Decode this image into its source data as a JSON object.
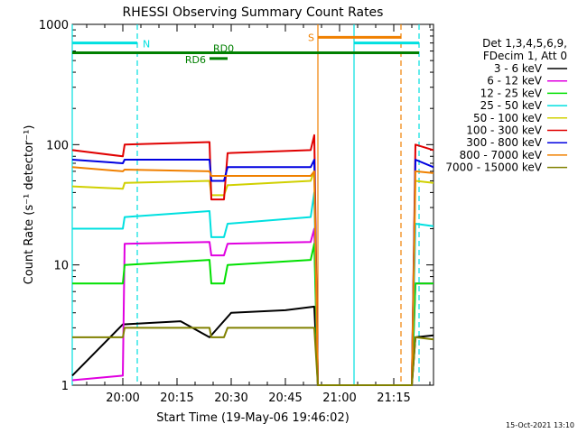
{
  "chart_data": {
    "type": "line",
    "title": "RHESSI Observing Summary Count Rates",
    "xlabel": "Start Time (19-May-06 19:46:02)",
    "ylabel": "Count Rate (s⁻¹ detector⁻¹)",
    "y_scale": "log",
    "ylim": [
      1,
      1000
    ],
    "xlim_minutes": [
      0,
      100
    ],
    "x_ticks": [
      {
        "label": "20:00",
        "t": 14
      },
      {
        "label": "20:15",
        "t": 29
      },
      {
        "label": "20:30",
        "t": 44
      },
      {
        "label": "20:45",
        "t": 59
      },
      {
        "label": "21:00",
        "t": 74
      },
      {
        "label": "21:15",
        "t": 89
      }
    ],
    "y_ticks": [
      {
        "label": "1",
        "v": 1
      },
      {
        "label": "10",
        "v": 10
      },
      {
        "label": "100",
        "v": 100
      },
      {
        "label": "1000",
        "v": 1000
      }
    ],
    "legend_header": [
      "Det 1,3,4,5,6,9,",
      "FDecim 1, Att 0"
    ],
    "legend_position": "right",
    "series": [
      {
        "name": "3 - 6 keV",
        "color": "#000000",
        "points": [
          [
            0,
            1.2
          ],
          [
            14,
            3.2
          ],
          [
            30,
            3.4
          ],
          [
            38,
            2.5
          ],
          [
            44,
            4
          ],
          [
            59,
            4.2
          ],
          [
            67,
            4.5
          ],
          [
            68,
            1
          ],
          [
            94,
            1
          ],
          [
            95,
            2.5
          ],
          [
            100,
            2.6
          ]
        ]
      },
      {
        "name": "6 - 12 keV",
        "color": "#e000e0",
        "points": [
          [
            0,
            1.1
          ],
          [
            14,
            1.2
          ],
          [
            14.5,
            15
          ],
          [
            38,
            15.5
          ],
          [
            38.5,
            12
          ],
          [
            42,
            12
          ],
          [
            43,
            15
          ],
          [
            66,
            15.5
          ],
          [
            67,
            20
          ],
          [
            68,
            1
          ],
          [
            94,
            1
          ],
          [
            95,
            7
          ],
          [
            100,
            7
          ]
        ]
      },
      {
        "name": "12 - 25 keV",
        "color": "#00e000",
        "points": [
          [
            0,
            7
          ],
          [
            14,
            7
          ],
          [
            14.5,
            10
          ],
          [
            38,
            11
          ],
          [
            38.5,
            7
          ],
          [
            42,
            7
          ],
          [
            43,
            10
          ],
          [
            66,
            11
          ],
          [
            67,
            15
          ],
          [
            68,
            1
          ],
          [
            94,
            1
          ],
          [
            95,
            7
          ],
          [
            100,
            7
          ]
        ]
      },
      {
        "name": "25 - 50 keV",
        "color": "#00e0e0",
        "points": [
          [
            0,
            20
          ],
          [
            14,
            20
          ],
          [
            14.5,
            25
          ],
          [
            38,
            28
          ],
          [
            38.5,
            17
          ],
          [
            42,
            17
          ],
          [
            43,
            22
          ],
          [
            66,
            25
          ],
          [
            67,
            40
          ],
          [
            68,
            1
          ],
          [
            94,
            1
          ],
          [
            95,
            22
          ],
          [
            100,
            21
          ]
        ]
      },
      {
        "name": "50 - 100 keV",
        "color": "#d0d000",
        "points": [
          [
            0,
            45
          ],
          [
            14,
            43
          ],
          [
            14.5,
            48
          ],
          [
            38,
            50
          ],
          [
            38.5,
            38
          ],
          [
            42,
            38
          ],
          [
            43,
            46
          ],
          [
            66,
            50
          ],
          [
            67,
            60
          ],
          [
            68,
            1
          ],
          [
            94,
            1
          ],
          [
            95,
            50
          ],
          [
            100,
            48
          ]
        ]
      },
      {
        "name": "100 - 300 keV",
        "color": "#e00000",
        "points": [
          [
            0,
            90
          ],
          [
            14,
            80
          ],
          [
            14.5,
            100
          ],
          [
            38,
            105
          ],
          [
            38.5,
            35
          ],
          [
            42,
            35
          ],
          [
            43,
            85
          ],
          [
            66,
            90
          ],
          [
            67,
            120
          ],
          [
            68,
            1
          ],
          [
            94,
            1
          ],
          [
            95,
            100
          ],
          [
            100,
            90
          ]
        ]
      },
      {
        "name": "300 - 800 keV",
        "color": "#0000e0",
        "points": [
          [
            0,
            75
          ],
          [
            14,
            70
          ],
          [
            14.5,
            75
          ],
          [
            38,
            75
          ],
          [
            38.5,
            50
          ],
          [
            42,
            50
          ],
          [
            43,
            65
          ],
          [
            66,
            65
          ],
          [
            67,
            75
          ],
          [
            68,
            1
          ],
          [
            94,
            1
          ],
          [
            95,
            75
          ],
          [
            100,
            65
          ]
        ]
      },
      {
        "name": "800 - 7000 keV",
        "color": "#f08000",
        "points": [
          [
            0,
            65
          ],
          [
            14,
            60
          ],
          [
            14.5,
            62
          ],
          [
            38,
            60
          ],
          [
            38.5,
            55
          ],
          [
            42,
            55
          ],
          [
            43,
            55
          ],
          [
            66,
            55
          ],
          [
            67,
            60
          ],
          [
            68,
            1
          ],
          [
            94,
            1
          ],
          [
            95,
            60
          ],
          [
            100,
            58
          ]
        ]
      },
      {
        "name": "7000 - 15000 keV",
        "color": "#808000",
        "points": [
          [
            0,
            2.5
          ],
          [
            14,
            2.5
          ],
          [
            14.5,
            3
          ],
          [
            38,
            3
          ],
          [
            38.5,
            2.5
          ],
          [
            42,
            2.5
          ],
          [
            43,
            3
          ],
          [
            66,
            3
          ],
          [
            67,
            3
          ],
          [
            68,
            1
          ],
          [
            94,
            1
          ],
          [
            95,
            2.5
          ],
          [
            100,
            2.4
          ]
        ]
      }
    ],
    "flag_bars": [
      {
        "label": "N",
        "color": "#00e0e0",
        "t0": 0,
        "t1": 18,
        "level": 700
      },
      {
        "label": "",
        "color": "#00e0e0",
        "t0": 78,
        "t1": 96,
        "level": 700
      },
      {
        "label": "S",
        "color": "#f08000",
        "t0": 68,
        "t1": 91,
        "level": 780
      },
      {
        "label": "RD0",
        "color": "#008000",
        "t0": 0,
        "t1": 96,
        "level": 580
      },
      {
        "label": "RD6",
        "color": "#008000",
        "t0": 38,
        "t1": 43,
        "level": 520
      }
    ],
    "vertical_markers": [
      {
        "t": 0,
        "color": "#00e0e0",
        "dashed": false
      },
      {
        "t": 18,
        "color": "#00e0e0",
        "dashed": true
      },
      {
        "t": 68,
        "color": "#f08000",
        "dashed": false
      },
      {
        "t": 78,
        "color": "#00e0e0",
        "dashed": false
      },
      {
        "t": 91,
        "color": "#f08000",
        "dashed": true
      },
      {
        "t": 96,
        "color": "#00e0e0",
        "dashed": true
      }
    ]
  },
  "footer": {
    "date_stamp": "15-Oct-2021 13:10"
  }
}
